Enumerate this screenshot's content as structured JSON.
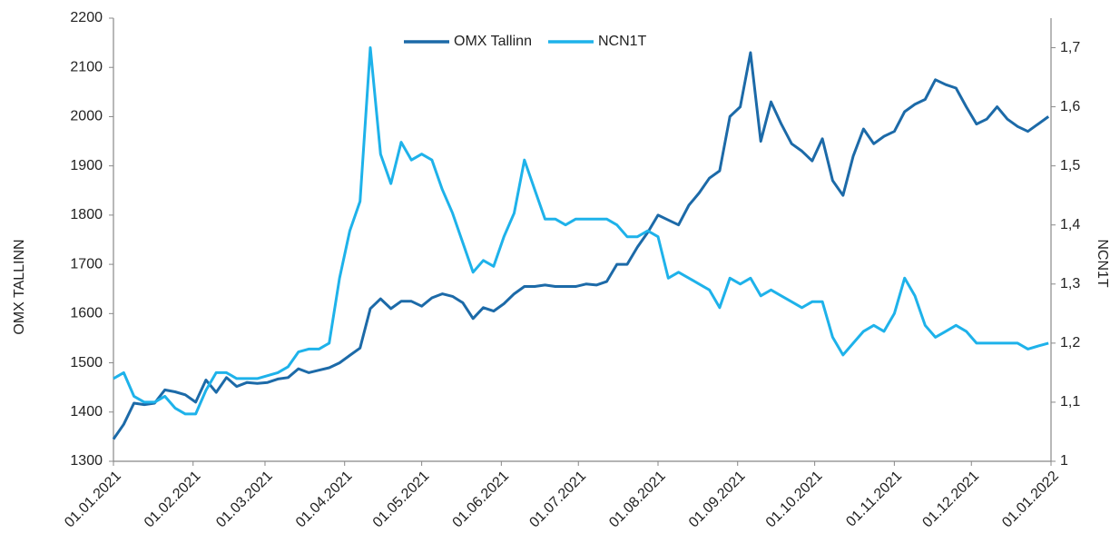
{
  "chart_data": {
    "type": "line",
    "x": [
      "2021-01-01",
      "2021-01-05",
      "2021-01-09",
      "2021-01-13",
      "2021-01-17",
      "2021-01-21",
      "2021-01-25",
      "2021-01-29",
      "2021-02-02",
      "2021-02-06",
      "2021-02-10",
      "2021-02-14",
      "2021-02-18",
      "2021-02-22",
      "2021-02-26",
      "2021-03-02",
      "2021-03-06",
      "2021-03-10",
      "2021-03-14",
      "2021-03-18",
      "2021-03-22",
      "2021-03-26",
      "2021-03-30",
      "2021-04-03",
      "2021-04-07",
      "2021-04-11",
      "2021-04-15",
      "2021-04-19",
      "2021-04-23",
      "2021-04-27",
      "2021-05-01",
      "2021-05-05",
      "2021-05-09",
      "2021-05-13",
      "2021-05-17",
      "2021-05-21",
      "2021-05-25",
      "2021-05-29",
      "2021-06-02",
      "2021-06-06",
      "2021-06-10",
      "2021-06-14",
      "2021-06-18",
      "2021-06-22",
      "2021-06-26",
      "2021-06-30",
      "2021-07-04",
      "2021-07-08",
      "2021-07-12",
      "2021-07-16",
      "2021-07-20",
      "2021-07-24",
      "2021-07-28",
      "2021-08-01",
      "2021-08-05",
      "2021-08-09",
      "2021-08-13",
      "2021-08-17",
      "2021-08-21",
      "2021-08-25",
      "2021-08-29",
      "2021-09-02",
      "2021-09-06",
      "2021-09-10",
      "2021-09-14",
      "2021-09-18",
      "2021-09-22",
      "2021-09-26",
      "2021-09-30",
      "2021-10-04",
      "2021-10-08",
      "2021-10-12",
      "2021-10-16",
      "2021-10-20",
      "2021-10-24",
      "2021-10-28",
      "2021-11-01",
      "2021-11-05",
      "2021-11-09",
      "2021-11-13",
      "2021-11-17",
      "2021-11-21",
      "2021-11-25",
      "2021-11-29",
      "2021-12-03",
      "2021-12-07",
      "2021-12-11",
      "2021-12-15",
      "2021-12-19",
      "2021-12-23",
      "2021-12-27",
      "2021-12-31"
    ],
    "series": [
      {
        "name": "OMX Tallinn",
        "color": "#1c6aa8",
        "axis": "y",
        "values": [
          1345,
          1375,
          1418,
          1415,
          1418,
          1445,
          1441,
          1435,
          1420,
          1465,
          1440,
          1470,
          1452,
          1460,
          1458,
          1460,
          1467,
          1470,
          1488,
          1480,
          1485,
          1490,
          1500,
          1515,
          1530,
          1610,
          1630,
          1610,
          1625,
          1625,
          1615,
          1632,
          1640,
          1635,
          1622,
          1590,
          1612,
          1605,
          1620,
          1640,
          1655,
          1655,
          1658,
          1655,
          1655,
          1655,
          1660,
          1658,
          1665,
          1700,
          1700,
          1735,
          1765,
          1800,
          1790,
          1780,
          1820,
          1845,
          1875,
          1890,
          2000,
          2020,
          2130,
          1950,
          2030,
          1985,
          1945,
          1930,
          1910,
          1955,
          1870,
          1840,
          1920,
          1975,
          1945,
          1960,
          1970,
          2010,
          2025,
          2035,
          2075,
          2065,
          2058,
          2020,
          1985,
          1995,
          2020,
          1995,
          1980,
          1970,
          1985,
          2000
        ]
      },
      {
        "name": "NCN1T",
        "color": "#1eb2ea",
        "axis": "y2",
        "values": [
          1.14,
          1.15,
          1.11,
          1.1,
          1.1,
          1.11,
          1.09,
          1.08,
          1.08,
          1.12,
          1.15,
          1.15,
          1.14,
          1.14,
          1.14,
          1.145,
          1.15,
          1.16,
          1.185,
          1.19,
          1.19,
          1.2,
          1.31,
          1.39,
          1.44,
          1.7,
          1.52,
          1.47,
          1.54,
          1.51,
          1.52,
          1.51,
          1.46,
          1.42,
          1.37,
          1.32,
          1.34,
          1.33,
          1.38,
          1.42,
          1.51,
          1.46,
          1.41,
          1.41,
          1.4,
          1.41,
          1.41,
          1.41,
          1.41,
          1.4,
          1.38,
          1.38,
          1.39,
          1.38,
          1.31,
          1.32,
          1.31,
          1.3,
          1.29,
          1.26,
          1.31,
          1.3,
          1.31,
          1.28,
          1.29,
          1.28,
          1.27,
          1.26,
          1.27,
          1.27,
          1.21,
          1.18,
          1.2,
          1.22,
          1.23,
          1.22,
          1.25,
          1.31,
          1.28,
          1.23,
          1.21,
          1.22,
          1.23,
          1.22,
          1.2,
          1.2,
          1.2,
          1.2,
          1.2,
          1.19,
          1.195,
          1.2
        ]
      }
    ],
    "xlim": [
      "2021-01-01",
      "2022-01-01"
    ],
    "xticks": [
      {
        "value": "2021-01-01",
        "label": "01.01.2021"
      },
      {
        "value": "2021-02-01",
        "label": "01.02.2021"
      },
      {
        "value": "2021-03-01",
        "label": "01.03.2021"
      },
      {
        "value": "2021-04-01",
        "label": "01.04.2021"
      },
      {
        "value": "2021-05-01",
        "label": "01.05.2021"
      },
      {
        "value": "2021-06-01",
        "label": "01.06.2021"
      },
      {
        "value": "2021-07-01",
        "label": "01.07.2021"
      },
      {
        "value": "2021-08-01",
        "label": "01.08.2021"
      },
      {
        "value": "2021-09-01",
        "label": "01.09.2021"
      },
      {
        "value": "2021-10-01",
        "label": "01.10.2021"
      },
      {
        "value": "2021-11-01",
        "label": "01.11.2021"
      },
      {
        "value": "2021-12-01",
        "label": "01.12.2021"
      },
      {
        "value": "2022-01-01",
        "label": "01.01.2022"
      }
    ],
    "ylim": [
      1300,
      2200
    ],
    "yticks": [
      1300,
      1400,
      1500,
      1600,
      1700,
      1800,
      1900,
      2000,
      2100,
      2200
    ],
    "y2lim": [
      1,
      1.75
    ],
    "y2ticks": [
      1,
      {
        "value": 1.1,
        "label": "1,1"
      },
      {
        "value": 1.2,
        "label": "1,2"
      },
      {
        "value": 1.3,
        "label": "1,3"
      },
      {
        "value": 1.4,
        "label": "1,4"
      },
      {
        "value": 1.5,
        "label": "1,5"
      },
      {
        "value": 1.6,
        "label": "1,6"
      },
      {
        "value": 1.7,
        "label": "1,7"
      }
    ],
    "ylabel": "OMX TALLINN",
    "y2label": "NCN1T",
    "legend": "top"
  }
}
